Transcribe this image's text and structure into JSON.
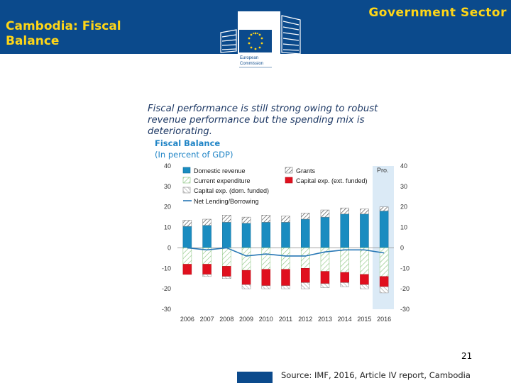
{
  "header": {
    "title": "Cambodia: Fiscal Balance",
    "sector": "Government  Sector",
    "logo_text": [
      "European",
      "Commission"
    ]
  },
  "footer": {
    "page_number": "21",
    "source": "Source: IMF, 2016, Article IV report, Cambodia"
  },
  "colors": {
    "banner": "#0b4a8c",
    "title_text": "#ffd617",
    "domestic": "#1a8cc0",
    "capital_ext": "#e0101e",
    "net_line": "#2777b5",
    "proj_band": "#dbeaf6"
  },
  "chart_data": {
    "type": "bar",
    "title": "Fiscal performance is still strong owing to robust revenue performance but the spending mix is deteriorating.",
    "subtitle": "Fiscal Balance",
    "unit": "(In percent of GDP)",
    "projection_label": "Pro.",
    "categories": [
      "2006",
      "2007",
      "2008",
      "2009",
      "2010",
      "2011",
      "2012",
      "2013",
      "2014",
      "2015",
      "2016"
    ],
    "ylim": [
      -30,
      40
    ],
    "yticks": [
      -30,
      -20,
      -10,
      0,
      10,
      20,
      30,
      40
    ],
    "legend": [
      "Domestic revenue",
      "Grants",
      "Current expenditure",
      "Capital exp. (ext. funded)",
      "Capital exp. (dom. funded)",
      "Net Lending/Borrowing"
    ],
    "series": [
      {
        "name": "Domestic revenue",
        "values": [
          10.5,
          11,
          12.5,
          12,
          12.5,
          12.5,
          14,
          15,
          16.5,
          16.5,
          18
        ]
      },
      {
        "name": "Grants",
        "values": [
          3,
          3,
          3.5,
          3,
          3.5,
          3,
          3,
          3.5,
          3,
          2.5,
          2
        ]
      },
      {
        "name": "Current expenditure",
        "values": [
          -8,
          -8,
          -9,
          -11,
          -10.5,
          -10.5,
          -10,
          -11.5,
          -12,
          -13,
          -14
        ]
      },
      {
        "name": "Capital exp. (ext. funded)",
        "values": [
          -5,
          -5,
          -5,
          -7,
          -8,
          -8,
          -7,
          -6,
          -5,
          -5,
          -5
        ]
      },
      {
        "name": "Capital exp. (dom. funded)",
        "values": [
          0,
          -1,
          -1,
          -2,
          -1.5,
          -1.5,
          -3,
          -2,
          -2,
          -2,
          -3
        ]
      },
      {
        "name": "Net Lending/Borrowing",
        "values": [
          0,
          -1,
          0,
          -4,
          -3,
          -4,
          -4,
          -2,
          -1,
          -1,
          -2.5
        ]
      }
    ]
  }
}
